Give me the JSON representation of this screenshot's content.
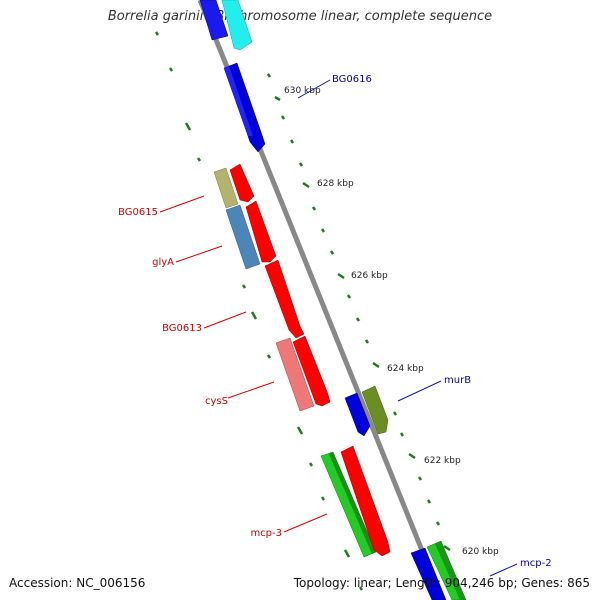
{
  "title": "Borrelia garinii PBi chromosome linear, complete sequence",
  "footer": {
    "accession": "Accession: NC_006156",
    "summary": "Topology: linear; Length: 904,246 bp; Genes: 865"
  },
  "ticks": [
    "630 kbp",
    "628 kbp",
    "626 kbp",
    "624 kbp",
    "622 kbp",
    "620 kbp"
  ],
  "genes": {
    "BG0616": "BG0616",
    "BG0615": "BG0615",
    "glyA": "glyA",
    "BG0613": "BG0613",
    "cysS": "cysS",
    "murB": "murB",
    "mcp3": "mcp-3",
    "mcp2": "mcp-2"
  },
  "colors": {
    "red": "#ff0000",
    "blue": "#0000dd",
    "cyan": "#00eeee",
    "khaki": "#b3b36e",
    "steel": "#4a86b8",
    "pink": "#ee7777",
    "olive": "#6b8e23",
    "green": "#22cc22",
    "tick": "#1e7b1e",
    "backbone": "#777777"
  }
}
